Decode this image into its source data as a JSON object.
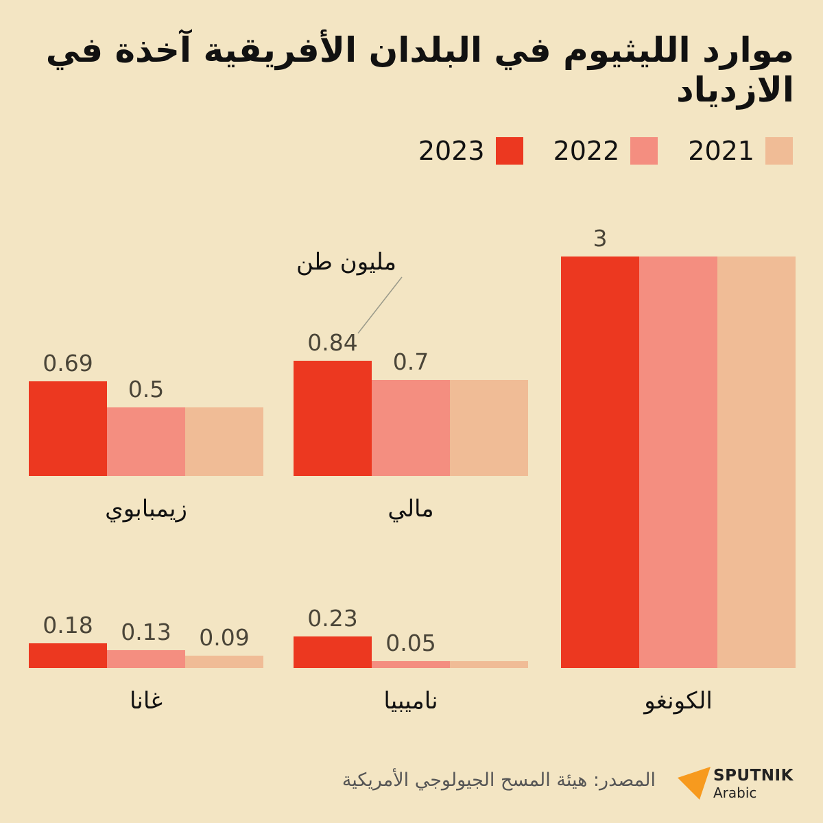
{
  "title": "موارد الليثيوم في البلدان الأفريقية آخذة في الازدياد",
  "legend": [
    {
      "label": "2023",
      "color": "#EC3820"
    },
    {
      "label": "2022",
      "color": "#F48E80"
    },
    {
      "label": "2021",
      "color": "#F0BC96"
    }
  ],
  "unit_annotation": "مليون طن",
  "source": "المصدر: هيئة المسح الجيولوجي الأمريكية",
  "logo": {
    "name": "SPUTNIK",
    "sub": "Arabic"
  },
  "chart_data": {
    "type": "bar",
    "ylabel": "",
    "unit": "مليون طن",
    "series_names": [
      "2023",
      "2022",
      "2021"
    ],
    "panels": [
      {
        "country": "الكونغو",
        "values": [
          3,
          3,
          3
        ],
        "labels": [
          "3",
          null,
          null
        ]
      },
      {
        "country": "مالي",
        "values": [
          0.84,
          0.7,
          0.7
        ],
        "labels": [
          "0.84",
          "0.7",
          null
        ]
      },
      {
        "country": "زيمبابوي",
        "values": [
          0.69,
          0.5,
          0.5
        ],
        "labels": [
          "0.69",
          "0.5",
          null
        ]
      },
      {
        "country": "ناميبيا",
        "values": [
          0.23,
          0.05,
          0.05
        ],
        "labels": [
          "0.23",
          "0.05",
          null
        ]
      },
      {
        "country": "غانا",
        "values": [
          0.18,
          0.13,
          0.09
        ],
        "labels": [
          "0.18",
          "0.13",
          "0.09"
        ]
      }
    ]
  }
}
